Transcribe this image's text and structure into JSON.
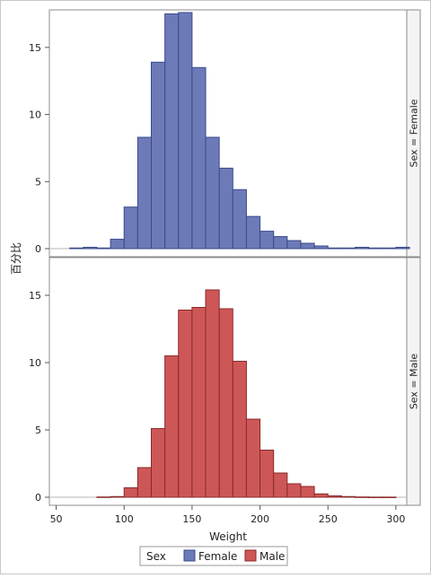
{
  "chart_data": {
    "type": "bar",
    "layout": "paneled-histogram",
    "xlabel": "Weight",
    "ylabel": "百分比",
    "xlim": [
      45,
      308
    ],
    "xticks": [
      50,
      100,
      150,
      200,
      250,
      300
    ],
    "ylim": [
      -0.6,
      17.8
    ],
    "yticks": [
      0,
      5,
      10,
      15
    ],
    "bin_width": 10,
    "bin_starts": [
      60,
      70,
      80,
      90,
      100,
      110,
      120,
      130,
      140,
      150,
      160,
      170,
      180,
      190,
      200,
      210,
      220,
      230,
      240,
      250,
      260,
      270,
      280,
      290,
      300
    ],
    "panels": [
      {
        "label": "Sex = Female",
        "series": "Female",
        "color": "#6c7bb8",
        "edge": "#3a4a8a",
        "values": [
          0.05,
          0.1,
          0.05,
          0.7,
          3.1,
          8.3,
          13.9,
          17.5,
          17.6,
          13.5,
          8.3,
          6.0,
          4.4,
          2.4,
          1.3,
          0.9,
          0.6,
          0.4,
          0.2,
          0.05,
          0.05,
          0.1,
          0.05,
          0.05,
          0.1
        ]
      },
      {
        "label": "Sex = Male",
        "series": "Male",
        "color": "#cd5757",
        "edge": "#8a2a2a",
        "values": [
          0.0,
          0.0,
          0.02,
          0.05,
          0.7,
          2.2,
          5.1,
          10.5,
          13.9,
          14.1,
          15.4,
          14.0,
          10.1,
          5.8,
          3.5,
          1.8,
          1.0,
          0.8,
          0.25,
          0.1,
          0.05,
          0.02,
          0.01,
          0.01,
          0.0
        ]
      }
    ],
    "legend": {
      "title": "Sex",
      "items": [
        {
          "label": "Female",
          "color": "#6c7bb8",
          "edge": "#3a4a8a"
        },
        {
          "label": "Male",
          "color": "#cd5757",
          "edge": "#8a2a2a"
        }
      ],
      "position": "bottom-center"
    },
    "grid": false
  }
}
